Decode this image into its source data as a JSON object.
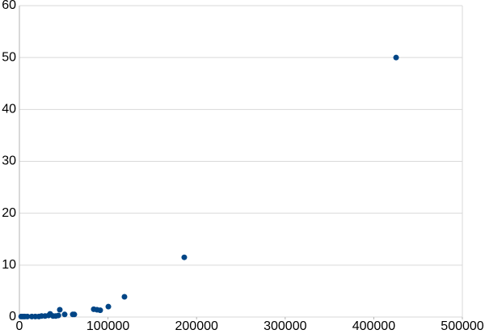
{
  "chart_data": {
    "type": "scatter",
    "x": [
      2000,
      4000,
      6000,
      9000,
      14000,
      18000,
      22000,
      25000,
      29000,
      33000,
      34700,
      38000,
      41000,
      44000,
      45600,
      51100,
      60200,
      62000,
      83900,
      87600,
      91200,
      100400,
      118600,
      186100,
      425200
    ],
    "values": [
      0.1,
      0.1,
      0.1,
      0.1,
      0.1,
      0.1,
      0.1,
      0.2,
      0.2,
      0.3,
      0.6,
      0.2,
      0.2,
      0.3,
      1.4,
      0.5,
      0.5,
      0.5,
      1.5,
      1.4,
      1.3,
      2.0,
      3.9,
      11.5,
      50.0
    ],
    "color": "#004586",
    "xlim": [
      0,
      500000
    ],
    "xticks": [
      0,
      100000,
      200000,
      300000,
      400000,
      500000
    ],
    "ylim": [
      0,
      60
    ],
    "yticks": [
      0,
      10,
      20,
      30,
      40,
      50,
      60
    ],
    "grid": true
  }
}
